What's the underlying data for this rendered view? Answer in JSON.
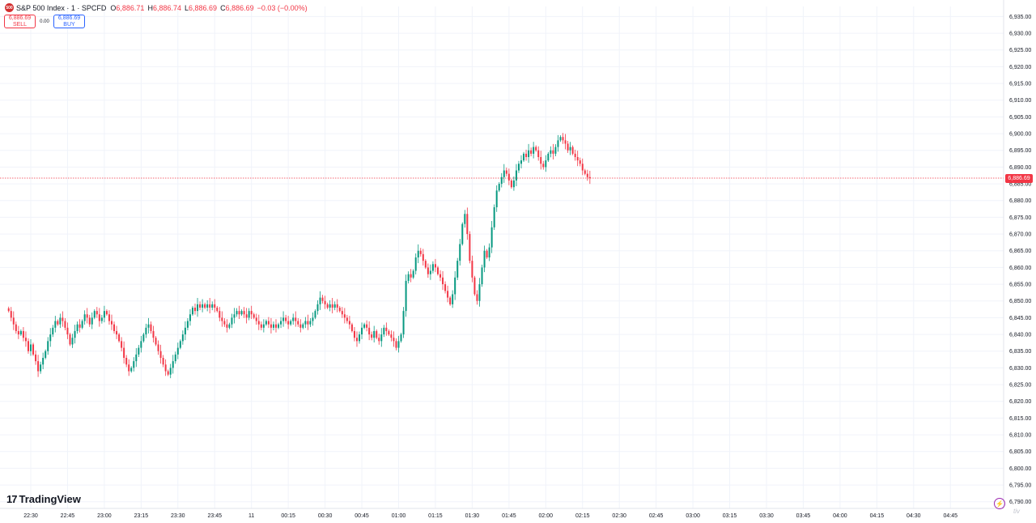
{
  "header": {
    "symbol_title": "S&P 500 Index · 1 · SPCFD",
    "ohlc": [
      {
        "label": "O",
        "value": "6,886.71"
      },
      {
        "label": "H",
        "value": "6,886.74"
      },
      {
        "label": "L",
        "value": "6,886.69"
      },
      {
        "label": "C",
        "value": "6,886.69"
      }
    ],
    "change": "−0.03 (−0.00%)"
  },
  "trade": {
    "sell_price": "6,886.69",
    "sell_label": "SELL",
    "spread": "0.00",
    "buy_price": "6,886.69",
    "buy_label": "BUY"
  },
  "brand": {
    "name": "TradingView"
  },
  "last_price": {
    "label": "6,886.69",
    "value": 6886.69
  },
  "colors": {
    "up": "#089981",
    "down": "#f23645",
    "grid": "#f0f3fa",
    "axis_text": "#131722"
  },
  "icons": [
    "symbol-badge-icon",
    "lightning-icon",
    "tradingview-logo-icon"
  ],
  "chart_data": {
    "type": "candlestick",
    "interval": "1",
    "ylim": [
      6788,
      6938
    ],
    "y_ticks": [
      "6,935.00",
      "6,930.00",
      "6,925.00",
      "6,920.00",
      "6,915.00",
      "6,910.00",
      "6,905.00",
      "6,900.00",
      "6,895.00",
      "6,890.00",
      "6,885.00",
      "6,880.00",
      "6,875.00",
      "6,870.00",
      "6,865.00",
      "6,860.00",
      "6,855.00",
      "6,850.00",
      "6,845.00",
      "6,840.00",
      "6,835.00",
      "6,830.00",
      "6,825.00",
      "6,820.00",
      "6,815.00",
      "6,810.00",
      "6,805.00",
      "6,800.00",
      "6,795.00",
      "6,790.00"
    ],
    "x_ticks": [
      "22:30",
      "22:45",
      "23:00",
      "23:15",
      "23:30",
      "23:45",
      "11",
      "00:15",
      "00:30",
      "00:45",
      "01:00",
      "01:15",
      "01:30",
      "01:45",
      "02:00",
      "02:15",
      "02:30",
      "02:45",
      "03:00",
      "03:15",
      "03:30",
      "03:45",
      "04:00",
      "04:15",
      "04:30",
      "04:45"
    ],
    "x_tick_start": "22:30",
    "x_tick_step_min": 15,
    "time_start": "22:21",
    "bars_per_minute": 1,
    "closes": [
      6847,
      6845,
      6843,
      6841,
      6840,
      6841,
      6839,
      6838,
      6835,
      6837,
      6834,
      6832,
      6829,
      6831,
      6833,
      6835,
      6838,
      6840,
      6842,
      6844,
      6843,
      6845,
      6844,
      6842,
      6840,
      6837,
      6839,
      6841,
      6843,
      6842,
      6844,
      6846,
      6845,
      6843,
      6845,
      6847,
      6846,
      6844,
      6845,
      6847,
      6846,
      6844,
      6843,
      6841,
      6840,
      6838,
      6836,
      6833,
      6831,
      6829,
      6830,
      6832,
      6834,
      6836,
      6838,
      6840,
      6842,
      6843,
      6841,
      6839,
      6837,
      6835,
      6833,
      6831,
      6829,
      6828,
      6830,
      6832,
      6834,
      6836,
      6838,
      6840,
      6842,
      6844,
      6846,
      6848,
      6847,
      6849,
      6848,
      6849,
      6848,
      6849,
      6848,
      6849,
      6848,
      6847,
      6845,
      6844,
      6843,
      6842,
      6843,
      6845,
      6846,
      6847,
      6846,
      6847,
      6846,
      6845,
      6847,
      6846,
      6845,
      6844,
      6843,
      6842,
      6843,
      6844,
      6843,
      6842,
      6843,
      6842,
      6843,
      6844,
      6845,
      6844,
      6843,
      6844,
      6845,
      6844,
      6843,
      6842,
      6843,
      6844,
      6843,
      6844,
      6845,
      6847,
      6849,
      6851,
      6850,
      6849,
      6848,
      6849,
      6848,
      6849,
      6848,
      6847,
      6846,
      6845,
      6844,
      6843,
      6841,
      6839,
      6838,
      6840,
      6842,
      6843,
      6842,
      6840,
      6839,
      6841,
      6839,
      6838,
      6840,
      6842,
      6841,
      6840,
      6839,
      6838,
      6836,
      6838,
      6840,
      6847,
      6856,
      6858,
      6857,
      6859,
      6863,
      6865,
      6864,
      6862,
      6860,
      6858,
      6859,
      6861,
      6860,
      6858,
      6857,
      6855,
      6853,
      6851,
      6849,
      6852,
      6857,
      6862,
      6867,
      6873,
      6876,
      6870,
      6862,
      6857,
      6852,
      6850,
      6855,
      6860,
      6865,
      6863,
      6866,
      6872,
      6878,
      6883,
      6885,
      6887,
      6889,
      6888,
      6886,
      6884,
      6886,
      6889,
      6891,
      6892,
      6894,
      6893,
      6895,
      6894,
      6896,
      6895,
      6893,
      6891,
      6890,
      6892,
      6894,
      6895,
      6894,
      6896,
      6898,
      6899,
      6898,
      6897,
      6895,
      6896,
      6894,
      6893,
      6892,
      6891,
      6889,
      6888,
      6887,
      6886.69
    ]
  }
}
